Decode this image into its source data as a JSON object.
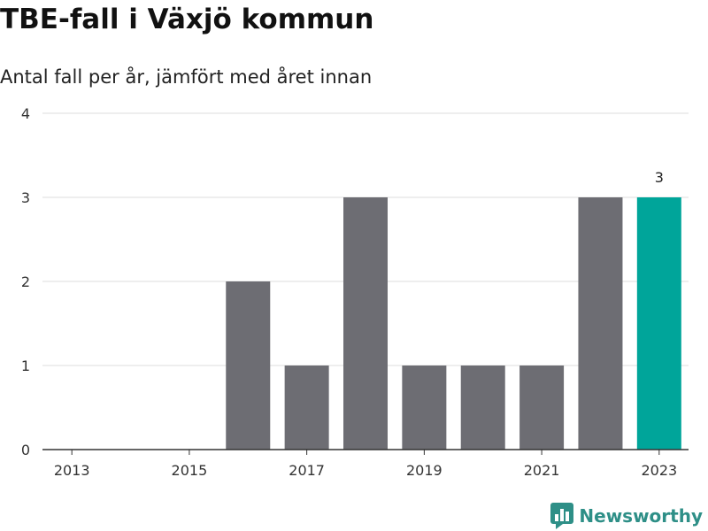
{
  "chart_data": {
    "type": "bar",
    "title": "TBE-fall i Växjö kommun",
    "subtitle": "Antal fall per år, jämfört med året innan",
    "categories": [
      "2013",
      "2014",
      "2015",
      "2016",
      "2017",
      "2018",
      "2019",
      "2020",
      "2021",
      "2022",
      "2023"
    ],
    "values": [
      0,
      0,
      0,
      2,
      1,
      3,
      1,
      1,
      1,
      3,
      3
    ],
    "x_tick_labels": [
      "2013",
      "2015",
      "2017",
      "2019",
      "2021",
      "2023"
    ],
    "y_ticks": [
      "0",
      "1",
      "2",
      "3",
      "4"
    ],
    "ylim": [
      0,
      4
    ],
    "grid": true,
    "colors": {
      "default": "#6d6d73",
      "highlight": "#00a59a"
    },
    "highlight_category": "2023",
    "data_labels": [
      {
        "category": "2023",
        "text": "3"
      }
    ]
  },
  "brand": {
    "name": "Newsworthy",
    "color": "#2e8f87",
    "icon": "bar-chart-logo-icon"
  }
}
